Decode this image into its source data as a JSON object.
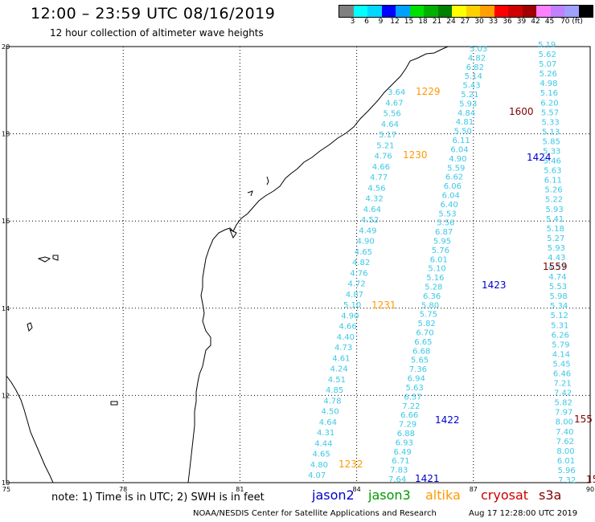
{
  "header": {
    "title": "12:00 – 23:59 UTC 08/16/2019",
    "subtitle": "12 hour collection of altimeter wave heights"
  },
  "scale": {
    "colors": [
      "#808080",
      "#00ffff",
      "#00d8ff",
      "#0000ff",
      "#00a0ff",
      "#00e000",
      "#00b000",
      "#008000",
      "#ffff00",
      "#ffd000",
      "#ffa000",
      "#ff0000",
      "#d00000",
      "#a00000",
      "#ff80ff",
      "#c080ff",
      "#a0a0ff",
      "#000000"
    ],
    "labels": [
      "3",
      "6",
      "9",
      "12",
      "15",
      "18",
      "21",
      "24",
      "27",
      "30",
      "33",
      "36",
      "39",
      "42",
      "45",
      "70 (ft)"
    ]
  },
  "map": {
    "lon_range": [
      75,
      90
    ],
    "lat_range": [
      10,
      20
    ],
    "lon_ticks": [
      "75",
      "78",
      "81",
      "84",
      "87",
      "90"
    ],
    "lat_ticks": [
      "20",
      "18",
      "16",
      "14",
      "12",
      "10"
    ]
  },
  "passes": [
    {
      "time": "1229",
      "color": "#ff9900"
    },
    {
      "time": "1230",
      "color": "#ff9900"
    },
    {
      "time": "1231",
      "color": "#ff9900"
    },
    {
      "time": "1232",
      "color": "#ff9900"
    },
    {
      "time": "1600",
      "color": "#800000"
    },
    {
      "time": "1424",
      "color": "#0000cc"
    },
    {
      "time": "1559",
      "color": "#800000"
    },
    {
      "time": "1423",
      "color": "#0000cc"
    },
    {
      "time": "1422",
      "color": "#0000cc"
    },
    {
      "time": "1421",
      "color": "#0000cc"
    },
    {
      "time": "155",
      "color": "#800000"
    },
    {
      "time": "15",
      "color": "#800000"
    }
  ],
  "tracks": [
    {
      "color": "#3cc8e6",
      "values": [
        "3.64",
        "4.67",
        "5.56",
        "4.64",
        "5.17",
        "5.21",
        "4.76",
        "4.66",
        "4.77",
        "4.56",
        "4.32",
        "4.64",
        "4.52",
        "4.49",
        "4.90",
        "4.65",
        "4.82",
        "4.76",
        "4.72",
        "4.87",
        "5.10",
        "4.90",
        "4.66",
        "4.40",
        "4.73",
        "4.61",
        "4.24",
        "4.51",
        "4.85",
        "4.78",
        "4.50",
        "4.64",
        "4.31",
        "4.44",
        "4.65",
        "4.80",
        "4.07"
      ]
    },
    {
      "color": "#3cc8e6",
      "values": [
        "5.03",
        "4.82",
        "6.82",
        "5.14",
        "5.43",
        "5.21",
        "5.93",
        "4.84",
        "4.81",
        "5.50",
        "6.11",
        "6.04",
        "4.90",
        "5.59",
        "6.62",
        "6.06",
        "6.04",
        "6.40",
        "5.53",
        "5.56",
        "6.87",
        "5.95",
        "5.76",
        "6.01",
        "5.10",
        "5.16",
        "5.28",
        "6.36",
        "5.80",
        "5.75",
        "5.82",
        "6.70",
        "6.65",
        "6.68",
        "5.65",
        "7.36",
        "6.94",
        "5.63",
        "6.57",
        "7.22",
        "6.66",
        "7.29",
        "6.88",
        "6.93",
        "6.49",
        "6.71",
        "7.83",
        "7.64"
      ]
    },
    {
      "color": "#3cc8e6",
      "values": [
        "5.19",
        "5.62",
        "5.07",
        "5.26",
        "4.98",
        "5.16",
        "6.20",
        "5.57",
        "5.33",
        "5.13",
        "5.85",
        "5.33",
        "5.46",
        "5.63",
        "6.11",
        "5.26",
        "5.22",
        "5.93",
        "5.41",
        "5.18",
        "5.27",
        "5.93",
        "4.43",
        "4.57",
        "4.74",
        "5.53",
        "5.98",
        "5.34",
        "5.12",
        "5.31",
        "6.26",
        "5.79",
        "4.14",
        "5.45",
        "6.46",
        "7.21",
        "7.42",
        "5.82",
        "7.97",
        "8.00",
        "7.40",
        "7.62",
        "8.00",
        "6.01",
        "5.96",
        "7.32"
      ]
    }
  ],
  "footer": {
    "note": "note: 1) Time is in UTC; 2) SWH is in feet",
    "satellites": [
      {
        "name": "jason2",
        "color": "#0000cc"
      },
      {
        "name": "jason3",
        "color": "#009900"
      },
      {
        "name": "altika",
        "color": "#ff9900"
      },
      {
        "name": "cryosat",
        "color": "#cc0000"
      },
      {
        "name": "s3a",
        "color": "#800000"
      }
    ],
    "credit": "NOAA/NESDIS Center for Satellite Applications and Research",
    "timestamp": "Aug 17 12:28:00 UTC 2019"
  }
}
